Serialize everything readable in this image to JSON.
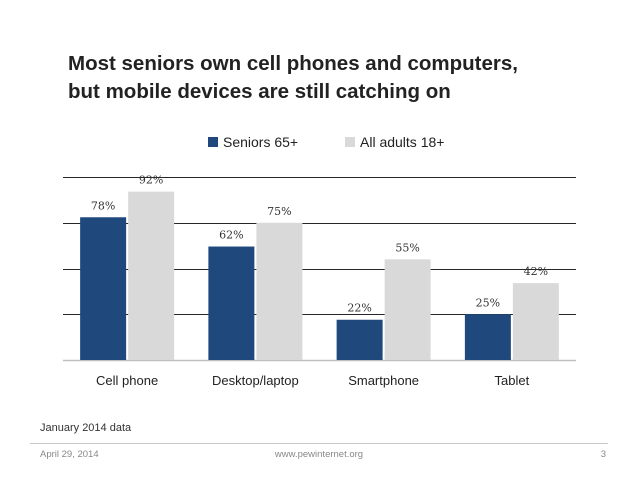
{
  "slide": {
    "title_line1": "Most seniors own cell phones and computers,",
    "title_line2": "but mobile devices are still catching on",
    "note": "January 2014 data",
    "date": "April 29, 2014",
    "url": "www.pewinternet.org",
    "page": "3"
  },
  "chart_data": {
    "type": "bar",
    "title": "Most seniors own cell phones and computers, but mobile devices are still catching on",
    "categories": [
      "Cell phone",
      "Desktop/laptop",
      "Smartphone",
      "Tablet"
    ],
    "series": [
      {
        "name": "Seniors 65+",
        "color": "#1f497d",
        "values": [
          78,
          62,
          22,
          25
        ],
        "labels": [
          "78%",
          "62%",
          "22%",
          "25%"
        ]
      },
      {
        "name": "All adults 18+",
        "color": "#d9d9d9",
        "values": [
          92,
          75,
          55,
          42
        ],
        "labels": [
          "92%",
          "75%",
          "55%",
          "42%"
        ]
      }
    ],
    "ylim": [
      0,
      100
    ],
    "grid": true,
    "legend": "top-center",
    "xlabel": "",
    "ylabel": ""
  }
}
